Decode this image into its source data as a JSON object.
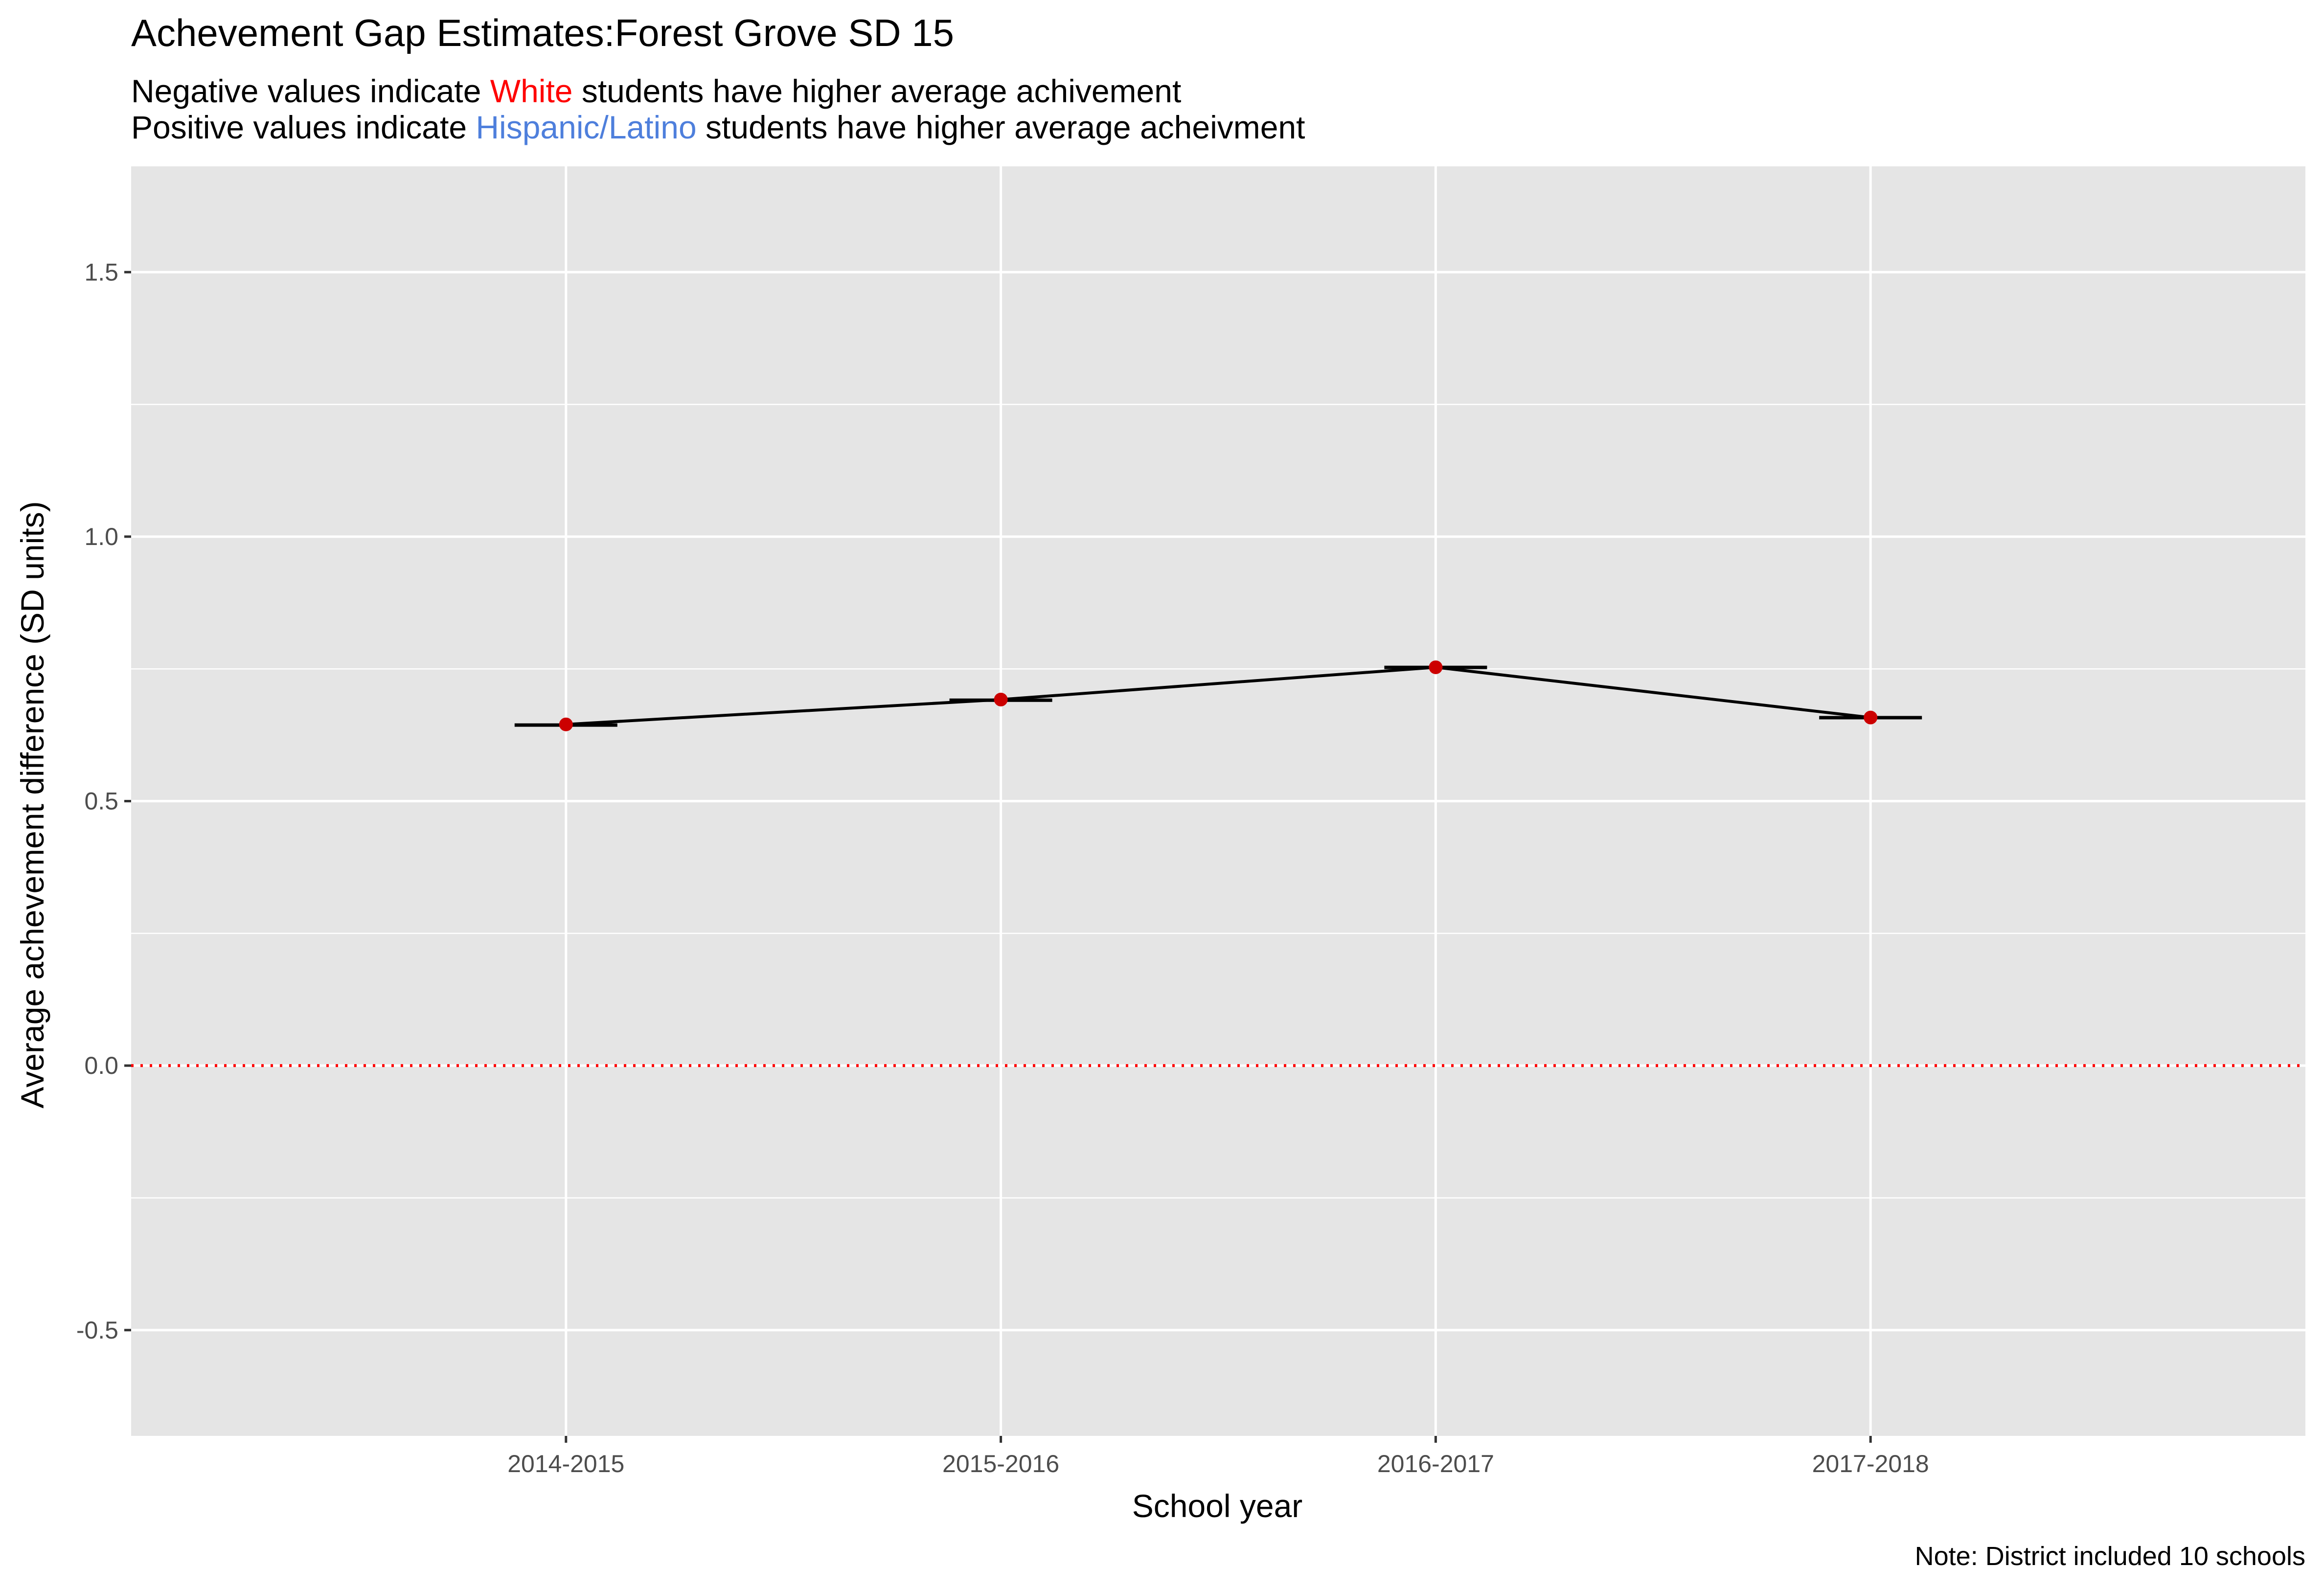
{
  "chart_data": {
    "type": "line",
    "title": "Achevement Gap Estimates:Forest Grove SD 15",
    "subtitle_lines": [
      {
        "before": "Negative values indicate ",
        "highlight": "White",
        "after": " students have higher average achivement",
        "highlight_color": "#ff0000"
      },
      {
        "before": "Positive values indicate ",
        "highlight": "Hispanic/Latino",
        "after": " students have higher average acheivment",
        "highlight_color": "#4e7fdc"
      }
    ],
    "xlabel": "School year",
    "ylabel": "Average achevement difference (SD units)",
    "caption": "Note: District included 10 schools",
    "categories": [
      "2014-2015",
      "2015-2016",
      "2016-2017",
      "2017-2018"
    ],
    "series": [
      {
        "values": [
          0.645,
          0.692,
          0.753,
          0.658
        ],
        "interval_low": [
          0.643,
          0.69,
          0.75,
          0.655
        ],
        "interval_high": [
          0.647,
          0.694,
          0.756,
          0.661
        ]
      }
    ],
    "ylim": [
      -0.7,
      1.7
    ],
    "yticks": [
      -0.5,
      0.0,
      0.5,
      1.0,
      1.5
    ],
    "ytick_labels": [
      "-0.5",
      "0.0",
      "0.5",
      "1.0",
      "1.5"
    ],
    "reference_line": {
      "y": 0,
      "style": "dotted",
      "color": "#ff0000"
    },
    "grid": true,
    "colors": {
      "panel": "#e5e5e5",
      "grid": "#ffffff",
      "line": "#000000",
      "point": "#cc0000"
    }
  }
}
